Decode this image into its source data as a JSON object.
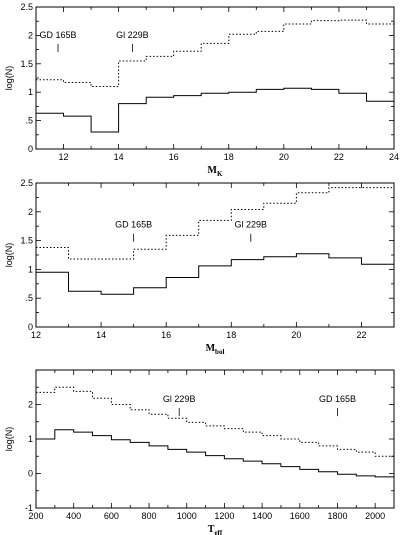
{
  "chart_data": [
    {
      "type": "line",
      "step": true,
      "xlabel_main": "M",
      "xlabel_sub": "K",
      "ylabel": "log(N)",
      "xlim": [
        11,
        24
      ],
      "ylim": [
        0,
        2.5
      ],
      "xticks": [
        12,
        14,
        16,
        18,
        20,
        22,
        24
      ],
      "xtick_labels": [
        "12",
        "14",
        "16",
        "18",
        "20",
        "22",
        "24"
      ],
      "yticks": [
        0,
        0.5,
        1,
        1.5,
        2,
        2.5
      ],
      "ytick_labels": [
        "0",
        ".5",
        "1",
        "1.5",
        "2",
        "2.5"
      ],
      "series": [
        {
          "style": "solid",
          "edges": [
            11,
            12,
            13,
            14,
            15,
            16,
            17,
            18,
            19,
            20,
            21,
            22,
            23,
            24
          ],
          "values": [
            0.63,
            0.58,
            0.3,
            0.8,
            0.91,
            0.94,
            0.98,
            1.0,
            1.05,
            1.07,
            1.05,
            0.98,
            0.84
          ]
        },
        {
          "style": "dotted",
          "edges": [
            11,
            12,
            13,
            14,
            15,
            16,
            17,
            18,
            19,
            20,
            21,
            22,
            23,
            24
          ],
          "values": [
            1.22,
            1.17,
            1.1,
            1.55,
            1.63,
            1.72,
            1.86,
            2.02,
            2.07,
            2.2,
            2.26,
            2.27,
            2.2
          ]
        }
      ],
      "annotations": [
        {
          "text": "GD 165B",
          "x": 11.8,
          "y_mark": 1.78
        },
        {
          "text": "Gl 229B",
          "x": 14.5,
          "y_mark": 1.78
        }
      ]
    },
    {
      "type": "line",
      "step": true,
      "xlabel_main": "M",
      "xlabel_sub": "bol",
      "ylabel": "log(N)",
      "xlim": [
        12,
        23
      ],
      "ylim": [
        0,
        2.5
      ],
      "xticks": [
        12,
        14,
        16,
        18,
        20,
        22
      ],
      "xtick_labels": [
        "12",
        "14",
        "16",
        "18",
        "20",
        "22"
      ],
      "yticks": [
        0,
        0.5,
        1,
        1.5,
        2,
        2.5
      ],
      "ytick_labels": [
        "0",
        ".5",
        "1",
        "1.5",
        "2",
        "2.5"
      ],
      "series": [
        {
          "style": "solid",
          "edges": [
            12,
            13,
            14,
            15,
            16,
            17,
            18,
            19,
            20,
            21,
            22,
            23
          ],
          "values": [
            0.95,
            0.62,
            0.57,
            0.68,
            0.86,
            1.06,
            1.17,
            1.22,
            1.27,
            1.2,
            1.09
          ]
        },
        {
          "style": "dotted",
          "edges": [
            12,
            13,
            14,
            15,
            16,
            17,
            18,
            19,
            20,
            21,
            22,
            23
          ],
          "values": [
            1.38,
            1.18,
            1.18,
            1.35,
            1.59,
            1.85,
            2.04,
            2.15,
            2.33,
            2.42,
            2.42
          ]
        }
      ],
      "annotations": [
        {
          "text": "GD 165B",
          "x": 15.0,
          "y_mark": 1.55
        },
        {
          "text": "Gl 229B",
          "x": 18.6,
          "y_mark": 1.55
        }
      ]
    },
    {
      "type": "line",
      "step": true,
      "xlabel_main": "T",
      "xlabel_sub": "eff",
      "ylabel": "log(N)",
      "xlim": [
        200,
        2100
      ],
      "ylim": [
        -1,
        3
      ],
      "xticks": [
        200,
        400,
        600,
        800,
        1000,
        1200,
        1400,
        1600,
        1800,
        2000
      ],
      "xtick_labels": [
        "200",
        "400",
        "600",
        "800",
        "1000",
        "1200",
        "1400",
        "1600",
        "1800",
        "2000"
      ],
      "yticks": [
        -1,
        0,
        1,
        2
      ],
      "ytick_labels": [
        "-1",
        "0",
        "1",
        "2"
      ],
      "series": [
        {
          "style": "solid",
          "edges": [
            200,
            300,
            400,
            500,
            600,
            700,
            800,
            900,
            1000,
            1100,
            1200,
            1300,
            1400,
            1500,
            1600,
            1700,
            1800,
            1900,
            2000,
            2100
          ],
          "values": [
            1.0,
            1.27,
            1.2,
            1.1,
            0.98,
            0.9,
            0.8,
            0.7,
            0.62,
            0.52,
            0.43,
            0.36,
            0.28,
            0.2,
            0.12,
            0.05,
            -0.02,
            -0.07,
            -0.1
          ]
        },
        {
          "style": "dotted",
          "edges": [
            200,
            300,
            400,
            500,
            600,
            700,
            800,
            900,
            1000,
            1100,
            1200,
            1300,
            1400,
            1500,
            1600,
            1700,
            1800,
            1900,
            2000,
            2100
          ],
          "values": [
            2.35,
            2.5,
            2.38,
            2.18,
            2.0,
            1.85,
            1.72,
            1.6,
            1.48,
            1.38,
            1.3,
            1.2,
            1.1,
            1.0,
            0.9,
            0.8,
            0.7,
            0.62,
            0.5
          ]
        }
      ],
      "annotations": [
        {
          "text": "Gl 229B",
          "x": 960,
          "y_mark": 1.78
        },
        {
          "text": "GD 165B",
          "x": 1800,
          "y_mark": 1.78
        }
      ]
    }
  ]
}
